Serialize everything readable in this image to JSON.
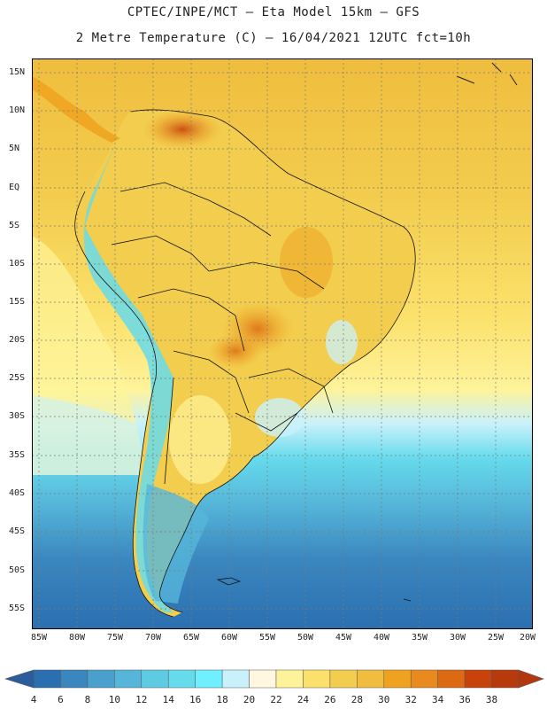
{
  "header": {
    "line1": "CPTEC/INPE/MCT –  Eta Model 15km – GFS",
    "line2": "2 Metre Temperature (C) – 16/04/2021 12UTC fct=10h"
  },
  "map": {
    "lat_labels": [
      "15N",
      "10N",
      "5N",
      "EQ",
      "5S",
      "10S",
      "15S",
      "20S",
      "25S",
      "30S",
      "35S",
      "40S",
      "45S",
      "50S",
      "55S"
    ],
    "lon_labels": [
      "85W",
      "80W",
      "75W",
      "70W",
      "65W",
      "60W",
      "55W",
      "50W",
      "45W",
      "40W",
      "35W",
      "30W",
      "25W",
      "20W"
    ]
  },
  "colorbar": {
    "labels": [
      "4",
      "6",
      "8",
      "10",
      "12",
      "14",
      "16",
      "18",
      "20",
      "22",
      "24",
      "26",
      "28",
      "30",
      "32",
      "34",
      "36",
      "38"
    ],
    "colors": [
      "#2b6fb0",
      "#3a86bf",
      "#49a0cd",
      "#56b6d9",
      "#5fcbe3",
      "#66dbec",
      "#6fefff",
      "#c9f1fb",
      "#fff7e0",
      "#fef39a",
      "#fbe16b",
      "#f3cd4e",
      "#f0bd3e",
      "#eea21f",
      "#e98a1f",
      "#dc6a13",
      "#c8420c",
      "#b83a0c"
    ],
    "end_low": "#2b5d9c",
    "end_high": "#b3380d"
  }
}
